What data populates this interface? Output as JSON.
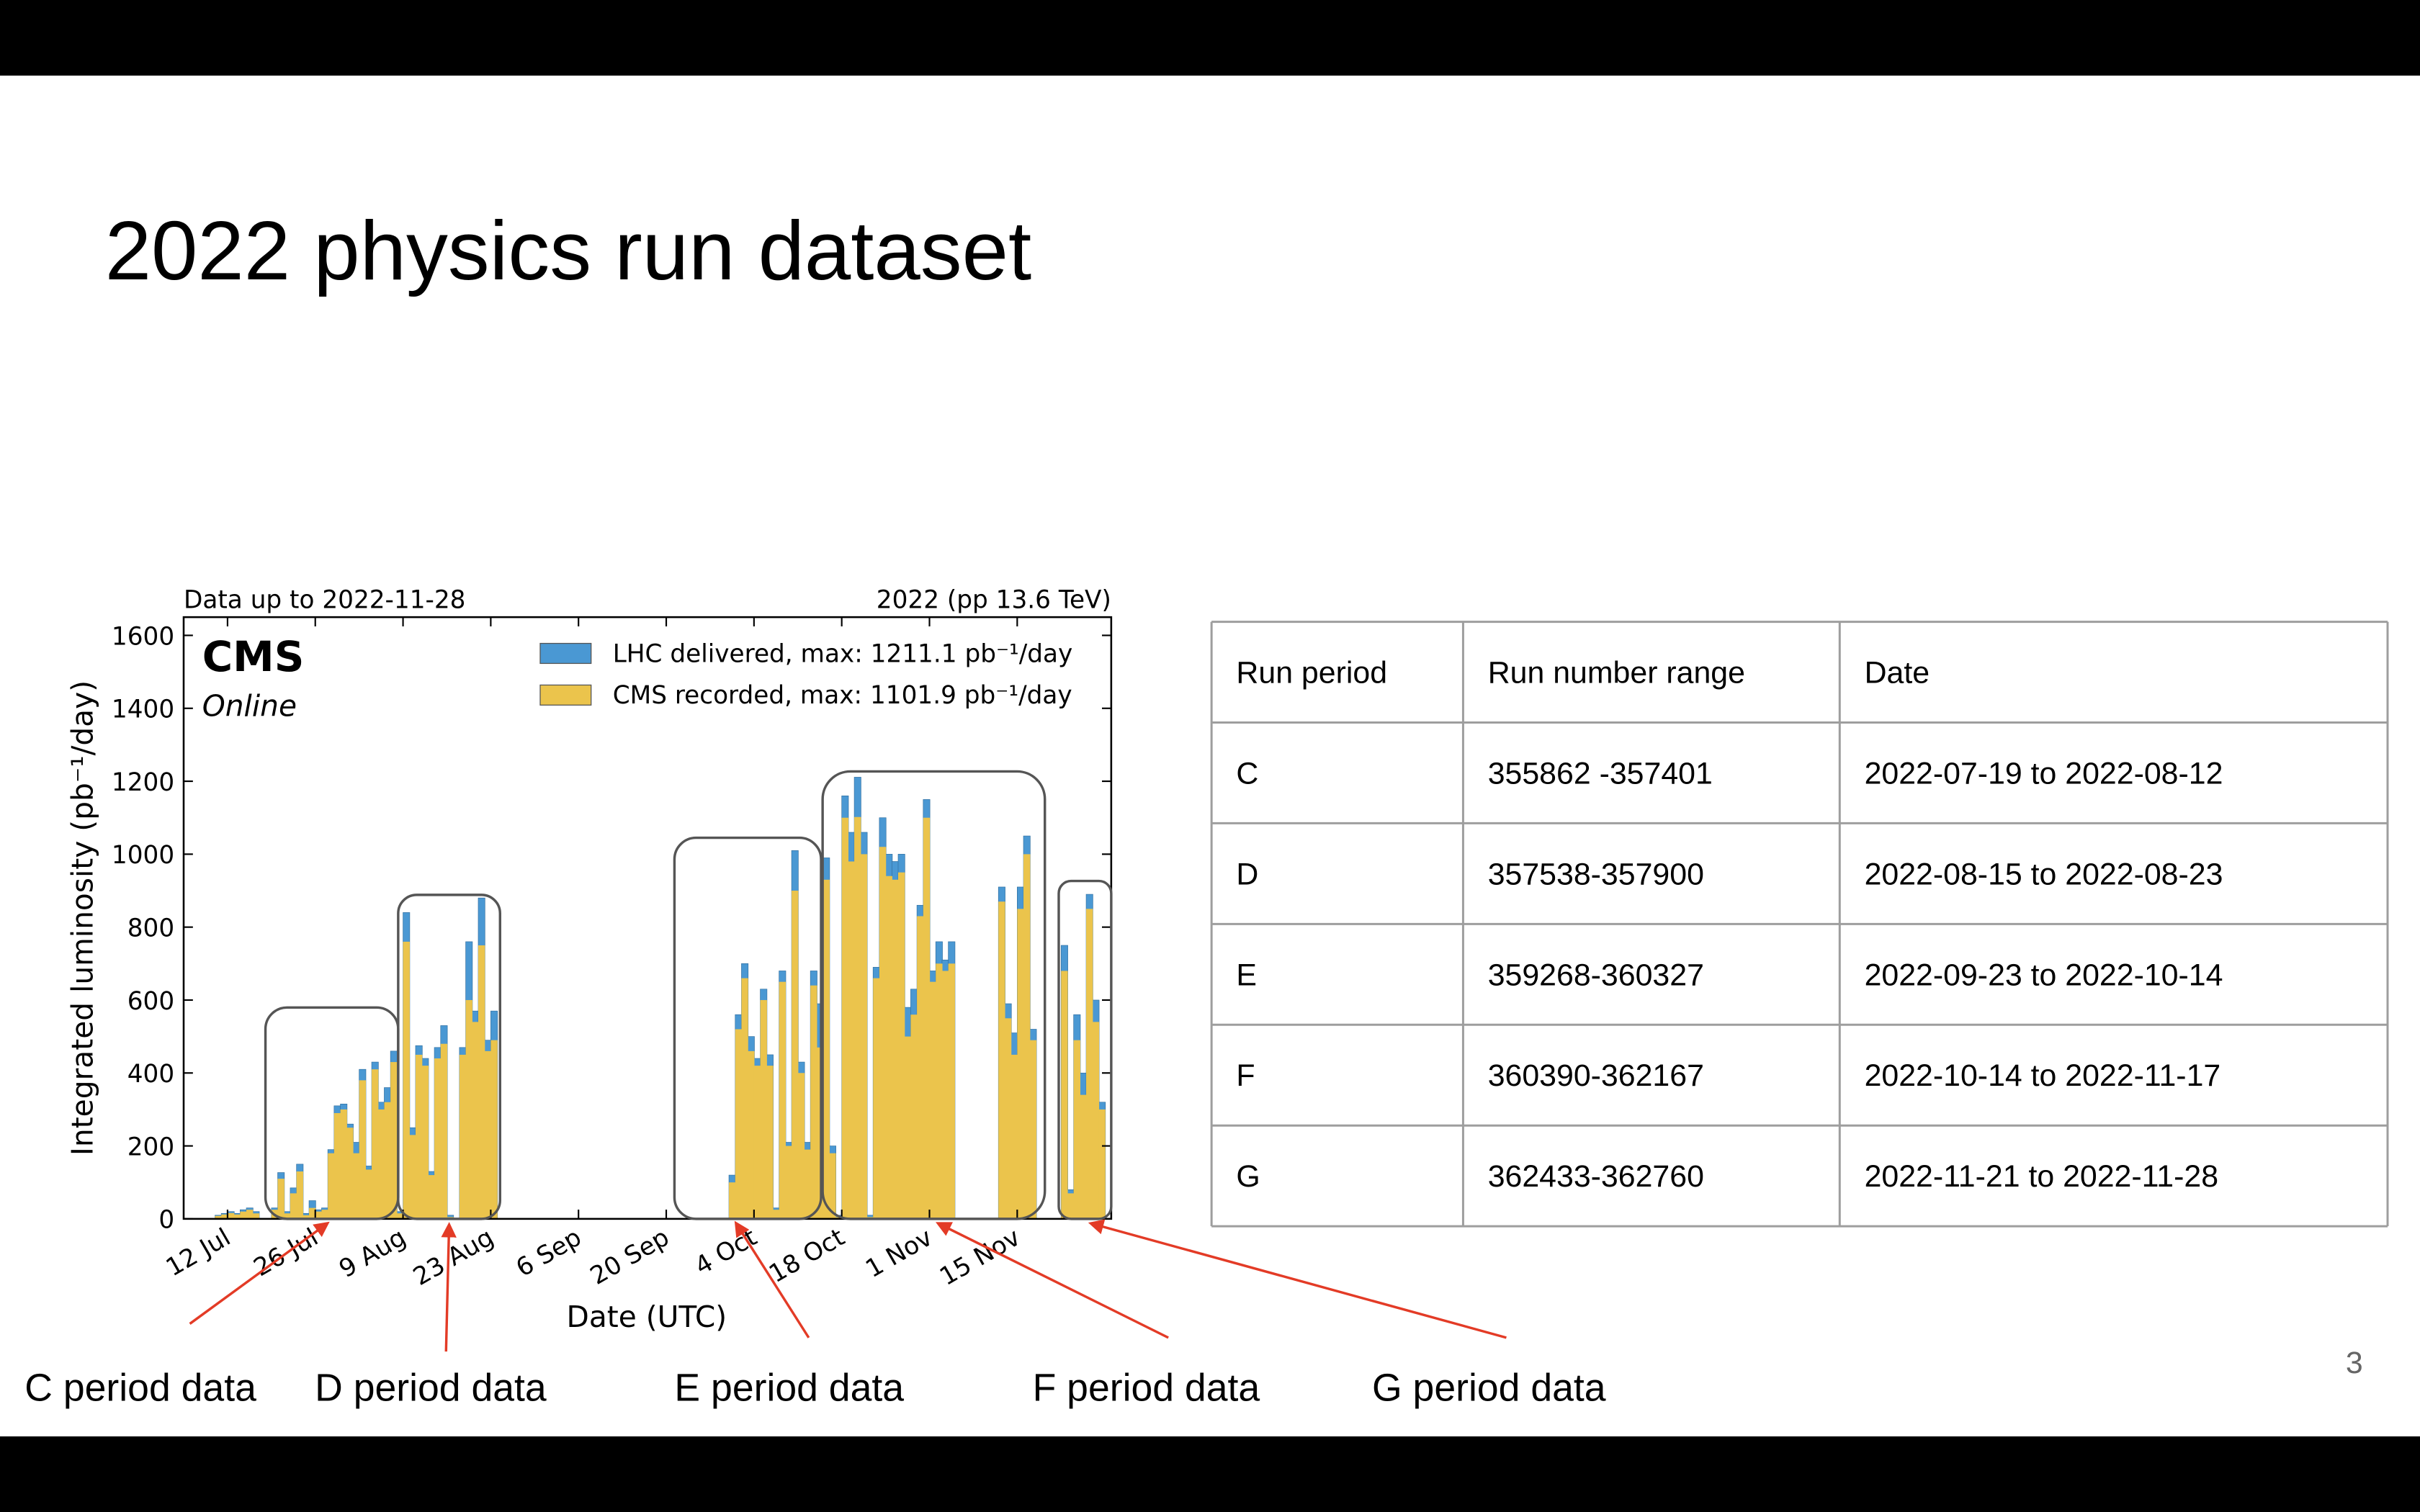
{
  "title": "2022 physics run dataset",
  "page_number": 3,
  "chart_data": {
    "type": "bar",
    "title_left": "Data up to 2022-11-28",
    "title_right": "2022 (pp 13.6 TeV)",
    "experiment": "CMS",
    "status": "Online",
    "xlabel": "Date (UTC)",
    "ylabel": "Integrated luminosity (pb⁻¹/day)",
    "legend": "upper right",
    "ylim": [
      0,
      1650
    ],
    "yticks": [
      0,
      200,
      400,
      600,
      800,
      1000,
      1200,
      1400,
      1600
    ],
    "categories": [
      null,
      null,
      null,
      null,
      null,
      null,
      null,
      "12 Jul",
      null,
      null,
      null,
      null,
      null,
      null,
      null,
      null,
      null,
      null,
      null,
      null,
      null,
      "26 Jul",
      null,
      null,
      null,
      null,
      null,
      null,
      null,
      null,
      null,
      null,
      null,
      null,
      null,
      "9 Aug",
      null,
      null,
      null,
      null,
      null,
      null,
      null,
      null,
      null,
      null,
      null,
      null,
      null,
      "23 Aug",
      null,
      null,
      null,
      null,
      null,
      null,
      null,
      null,
      null,
      null,
      null,
      null,
      null,
      "6 Sep",
      null,
      null,
      null,
      null,
      null,
      null,
      null,
      null,
      null,
      null,
      null,
      null,
      null,
      "20 Sep",
      null,
      null,
      null,
      null,
      null,
      null,
      null,
      null,
      null,
      null,
      null,
      null,
      null,
      "4 Oct",
      null,
      null,
      null,
      null,
      null,
      null,
      null,
      null,
      null,
      null,
      null,
      null,
      null,
      "18 Oct",
      null,
      null,
      null,
      null,
      null,
      null,
      null,
      null,
      null,
      null,
      null,
      null,
      null,
      "1 Nov",
      null,
      null,
      null,
      null,
      null,
      null,
      null,
      null,
      null,
      null,
      null,
      null,
      null,
      "15 Nov",
      null,
      null,
      null,
      null,
      null,
      null,
      null,
      null,
      null,
      null,
      null,
      null,
      null,
      null
    ],
    "series": [
      {
        "name": "LHC delivered, max: 1211.1 pb⁻¹/day",
        "color": "#4a98d3",
        "values": [
          0,
          0,
          0,
          0,
          0,
          10,
          15,
          20,
          15,
          25,
          30,
          20,
          0,
          0,
          30,
          127,
          20,
          85,
          150,
          15,
          50,
          25,
          30,
          190,
          310,
          315,
          260,
          210,
          410,
          145,
          430,
          320,
          360,
          460,
          20,
          840,
          250,
          475,
          440,
          130,
          470,
          530,
          10,
          0,
          470,
          760,
          570,
          880,
          490,
          570,
          0,
          0,
          0,
          0,
          0,
          0,
          0,
          0,
          0,
          0,
          0,
          0,
          0,
          0,
          0,
          0,
          0,
          0,
          0,
          0,
          0,
          0,
          0,
          0,
          0,
          0,
          0,
          0,
          0,
          0,
          0,
          0,
          0,
          0,
          0,
          0,
          0,
          120,
          560,
          700,
          500,
          440,
          630,
          450,
          30,
          680,
          210,
          1010,
          430,
          210,
          680,
          590,
          990,
          200,
          10,
          1160,
          1060,
          1211.1,
          1060,
          10,
          690,
          1100,
          1000,
          980,
          1000,
          580,
          630,
          860,
          1150,
          680,
          760,
          710,
          760,
          0,
          0,
          0,
          0,
          0,
          0,
          0,
          910,
          590,
          510,
          910,
          1050,
          520,
          0,
          0,
          0,
          0,
          750,
          80,
          560,
          400,
          890,
          600,
          320,
          0
        ]
      },
      {
        "name": "CMS recorded, max: 1101.9 pb⁻¹/day",
        "color": "#ebc44c",
        "values": [
          0,
          0,
          0,
          0,
          0,
          8,
          12,
          16,
          12,
          20,
          25,
          15,
          0,
          0,
          25,
          110,
          15,
          70,
          130,
          10,
          30,
          20,
          25,
          180,
          290,
          300,
          250,
          180,
          380,
          135,
          410,
          300,
          320,
          430,
          15,
          760,
          230,
          450,
          420,
          120,
          440,
          480,
          5,
          0,
          450,
          600,
          540,
          750,
          460,
          490,
          0,
          0,
          0,
          0,
          0,
          0,
          0,
          0,
          0,
          0,
          0,
          0,
          0,
          0,
          0,
          0,
          0,
          0,
          0,
          0,
          0,
          0,
          0,
          0,
          0,
          0,
          0,
          0,
          0,
          0,
          0,
          0,
          0,
          0,
          0,
          0,
          0,
          100,
          520,
          660,
          460,
          420,
          600,
          420,
          25,
          650,
          200,
          900,
          400,
          190,
          640,
          470,
          930,
          180,
          5,
          1100,
          980,
          1101.9,
          1000,
          5,
          660,
          1020,
          940,
          930,
          950,
          500,
          560,
          830,
          1100,
          650,
          700,
          680,
          700,
          0,
          0,
          0,
          0,
          0,
          0,
          0,
          870,
          550,
          450,
          850,
          1000,
          490,
          0,
          0,
          0,
          0,
          680,
          70,
          490,
          340,
          850,
          540,
          300,
          0
        ]
      }
    ]
  },
  "table": {
    "header": [
      "Run period",
      "Run number range",
      "Date"
    ],
    "rows": [
      [
        "C",
        "355862 -357401",
        "2022-07-19 to 2022-08-12"
      ],
      [
        "D",
        "357538-357900",
        "2022-08-15 to 2022-08-23"
      ],
      [
        "E",
        "359268-360327",
        "2022-09-23 to 2022-10-14"
      ],
      [
        "F",
        "360390-362167",
        "2022-10-14 to 2022-11-17"
      ],
      [
        "G",
        "362433-362760",
        "2022-11-21 to 2022-11-28"
      ]
    ]
  },
  "annotations": [
    "C period data",
    "D period data",
    "E period data",
    "F period data",
    "G period data"
  ]
}
